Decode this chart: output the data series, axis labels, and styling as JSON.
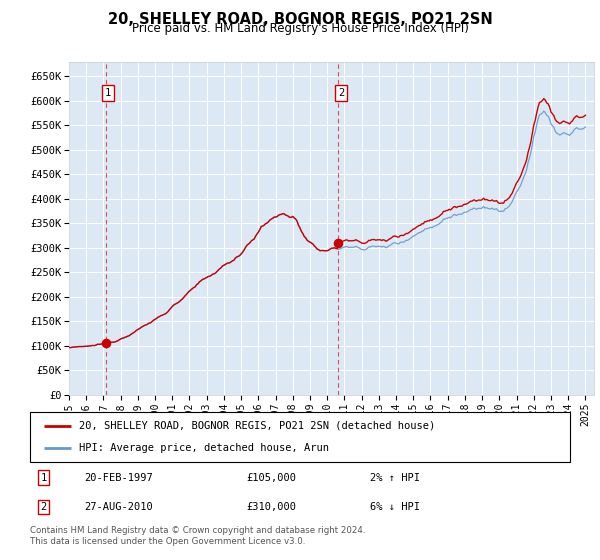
{
  "title": "20, SHELLEY ROAD, BOGNOR REGIS, PO21 2SN",
  "subtitle": "Price paid vs. HM Land Registry's House Price Index (HPI)",
  "yticks": [
    0,
    50000,
    100000,
    150000,
    200000,
    250000,
    300000,
    350000,
    400000,
    450000,
    500000,
    550000,
    600000,
    650000
  ],
  "ylim": [
    0,
    680000
  ],
  "xlim_start": 1995.0,
  "xlim_end": 2025.5,
  "bg_color": "#dce9f5",
  "grid_color": "#ffffff",
  "sale1_x": 1997.13,
  "sale1_y": 105000,
  "sale2_x": 2010.65,
  "sale2_y": 310000,
  "sale1_label": "20-FEB-1997",
  "sale1_price": "£105,000",
  "sale1_hpi": "2% ↑ HPI",
  "sale2_label": "27-AUG-2010",
  "sale2_price": "£310,000",
  "sale2_hpi": "6% ↓ HPI",
  "legend_line1": "20, SHELLEY ROAD, BOGNOR REGIS, PO21 2SN (detached house)",
  "legend_line2": "HPI: Average price, detached house, Arun",
  "footer": "Contains HM Land Registry data © Crown copyright and database right 2024.\nThis data is licensed under the Open Government Licence v3.0.",
  "sale_color": "#cc0000",
  "hpi_color": "#6699cc"
}
